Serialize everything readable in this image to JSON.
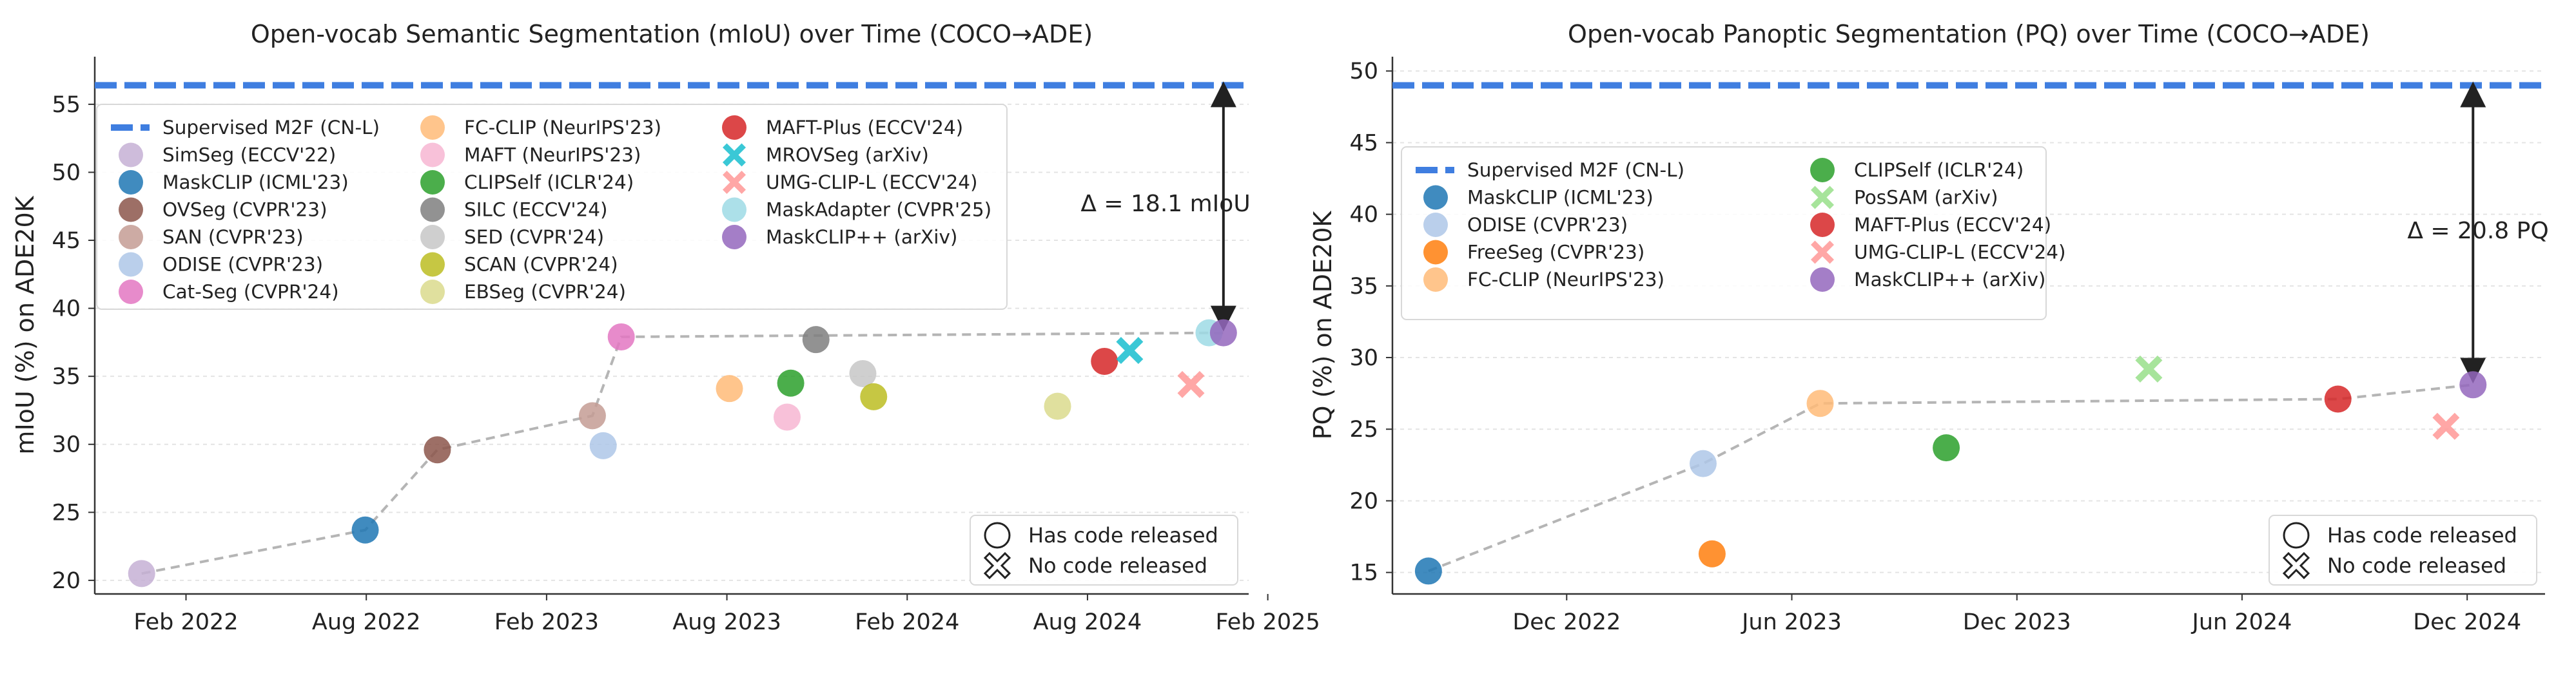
{
  "chart_data": [
    {
      "type": "scatter",
      "title": "Open-vocab Semantic Segmentation (mIoU) over Time (COCO→ADE)",
      "xlabel": "",
      "ylabel": "mIoU (%) on ADE20K",
      "ylim": [
        19,
        58.5
      ],
      "xlim": [
        2021.83,
        2025.03
      ],
      "yticks": [
        20,
        25,
        30,
        35,
        40,
        45,
        50,
        55
      ],
      "xticks": [
        {
          "value": 2022.083,
          "label": "Feb 2022"
        },
        {
          "value": 2022.583,
          "label": "Aug 2022"
        },
        {
          "value": 2023.083,
          "label": "Feb 2023"
        },
        {
          "value": 2023.583,
          "label": "Aug 2023"
        },
        {
          "value": 2024.083,
          "label": "Feb 2024"
        },
        {
          "value": 2024.583,
          "label": "Aug 2024"
        },
        {
          "value": 2025.083,
          "label": "Feb 2025"
        }
      ],
      "supervised": {
        "label": "Supervised M2F (CN-L)",
        "value": 56.4
      },
      "delta_label": "Δ = 18.1 mIoU",
      "series": [
        {
          "name": "SimSeg (ECCV'22)",
          "color": "#c5b0d5",
          "marker": "circle",
          "x": 2021.96,
          "y": 20.5
        },
        {
          "name": "MaskCLIP (ICML'23)",
          "color": "#1f77b4",
          "marker": "circle",
          "x": 2022.58,
          "y": 23.7
        },
        {
          "name": "OVSeg (CVPR'23)",
          "color": "#8c564b",
          "marker": "circle",
          "x": 2022.78,
          "y": 29.6
        },
        {
          "name": "SAN (CVPR'23)",
          "color": "#c49c94",
          "marker": "circle",
          "x": 2023.21,
          "y": 32.1
        },
        {
          "name": "ODISE (CVPR'23)",
          "color": "#aec7e8",
          "marker": "circle",
          "x": 2023.24,
          "y": 29.9
        },
        {
          "name": "Cat-Seg (CVPR'24)",
          "color": "#e377c2",
          "marker": "circle",
          "x": 2023.29,
          "y": 37.9
        },
        {
          "name": "FC-CLIP (NeurIPS'23)",
          "color": "#ffbb78",
          "marker": "circle",
          "x": 2023.59,
          "y": 34.1
        },
        {
          "name": "MAFT (NeurIPS'23)",
          "color": "#f7b6d2",
          "marker": "circle",
          "x": 2023.75,
          "y": 32.0
        },
        {
          "name": "CLIPSelf (ICLR'24)",
          "color": "#2ca02c",
          "marker": "circle",
          "x": 2023.76,
          "y": 34.5
        },
        {
          "name": "SILC (ECCV'24)",
          "color": "#7f7f7f",
          "marker": "circle",
          "x": 2023.83,
          "y": 37.7
        },
        {
          "name": "SED (CVPR'24)",
          "color": "#c7c7c7",
          "marker": "circle",
          "x": 2023.96,
          "y": 35.2
        },
        {
          "name": "SCAN (CVPR'24)",
          "color": "#bcbd22",
          "marker": "circle",
          "x": 2023.99,
          "y": 33.5
        },
        {
          "name": "EBSeg (CVPR'24)",
          "color": "#dbdb8d",
          "marker": "circle",
          "x": 2024.5,
          "y": 32.8
        },
        {
          "name": "MAFT-Plus (ECCV'24)",
          "color": "#d62728",
          "marker": "circle",
          "x": 2024.63,
          "y": 36.1
        },
        {
          "name": "MROVSeg (arXiv)",
          "color": "#17becf",
          "marker": "x",
          "x": 2024.7,
          "y": 36.9
        },
        {
          "name": "UMG-CLIP-L (ECCV'24)",
          "color": "#ff9896",
          "marker": "x",
          "x": 2024.87,
          "y": 34.4
        },
        {
          "name": "MaskAdapter (CVPR'25)",
          "color": "#9edae5",
          "marker": "circle",
          "x": 2024.92,
          "y": 38.2
        },
        {
          "name": "MaskCLIP++ (arXiv)",
          "color": "#9467bd",
          "marker": "circle",
          "x": 2024.96,
          "y": 38.2
        }
      ],
      "frontier": [
        [
          2021.96,
          20.5
        ],
        [
          2022.58,
          23.7
        ],
        [
          2022.78,
          29.6
        ],
        [
          2023.21,
          32.1
        ],
        [
          2023.29,
          37.9
        ],
        [
          2024.96,
          38.2
        ]
      ],
      "code_legend": {
        "released": "Has code released",
        "not_released": "No code released"
      }
    },
    {
      "type": "scatter",
      "title": "Open-vocab Panoptic Segmentation (PQ) over Time (COCO→ADE)",
      "xlabel": "",
      "ylabel": "PQ (%) on ADE20K",
      "ylim": [
        13.5,
        51
      ],
      "xlim": [
        2022.53,
        2025.09
      ],
      "yticks": [
        15,
        20,
        25,
        30,
        35,
        40,
        45,
        50
      ],
      "xticks": [
        {
          "value": 2022.917,
          "label": "Dec 2022"
        },
        {
          "value": 2023.417,
          "label": "Jun 2023"
        },
        {
          "value": 2023.917,
          "label": "Dec 2023"
        },
        {
          "value": 2024.417,
          "label": "Jun 2024"
        },
        {
          "value": 2024.917,
          "label": "Dec 2024"
        }
      ],
      "supervised": {
        "label": "Supervised M2F (CN-L)",
        "value": 49.0
      },
      "delta_label": "Δ = 20.8 PQ",
      "series": [
        {
          "name": "MaskCLIP (ICML'23)",
          "color": "#1f77b4",
          "marker": "circle",
          "x": 2022.61,
          "y": 15.1
        },
        {
          "name": "ODISE (CVPR'23)",
          "color": "#aec7e8",
          "marker": "circle",
          "x": 2023.22,
          "y": 22.6
        },
        {
          "name": "FreeSeg (CVPR'23)",
          "color": "#ff7f0e",
          "marker": "circle",
          "x": 2023.24,
          "y": 16.3
        },
        {
          "name": "FC-CLIP (NeurIPS'23)",
          "color": "#ffbb78",
          "marker": "circle",
          "x": 2023.48,
          "y": 26.8
        },
        {
          "name": "CLIPSelf (ICLR'24)",
          "color": "#2ca02c",
          "marker": "circle",
          "x": 2023.76,
          "y": 23.7
        },
        {
          "name": "PosSAM (arXiv)",
          "color": "#98df8a",
          "marker": "x",
          "x": 2024.21,
          "y": 29.2
        },
        {
          "name": "MAFT-Plus (ECCV'24)",
          "color": "#d62728",
          "marker": "circle",
          "x": 2024.63,
          "y": 27.1
        },
        {
          "name": "UMG-CLIP-L (ECCV'24)",
          "color": "#ff9896",
          "marker": "x",
          "x": 2024.87,
          "y": 25.2
        },
        {
          "name": "MaskCLIP++ (arXiv)",
          "color": "#9467bd",
          "marker": "circle",
          "x": 2024.93,
          "y": 28.1
        }
      ],
      "frontier": [
        [
          2022.61,
          15.1
        ],
        [
          2023.22,
          22.6
        ],
        [
          2023.48,
          26.8
        ],
        [
          2024.63,
          27.1
        ],
        [
          2024.93,
          28.1
        ]
      ],
      "code_legend": {
        "released": "Has code released",
        "not_released": "No code released"
      }
    }
  ]
}
